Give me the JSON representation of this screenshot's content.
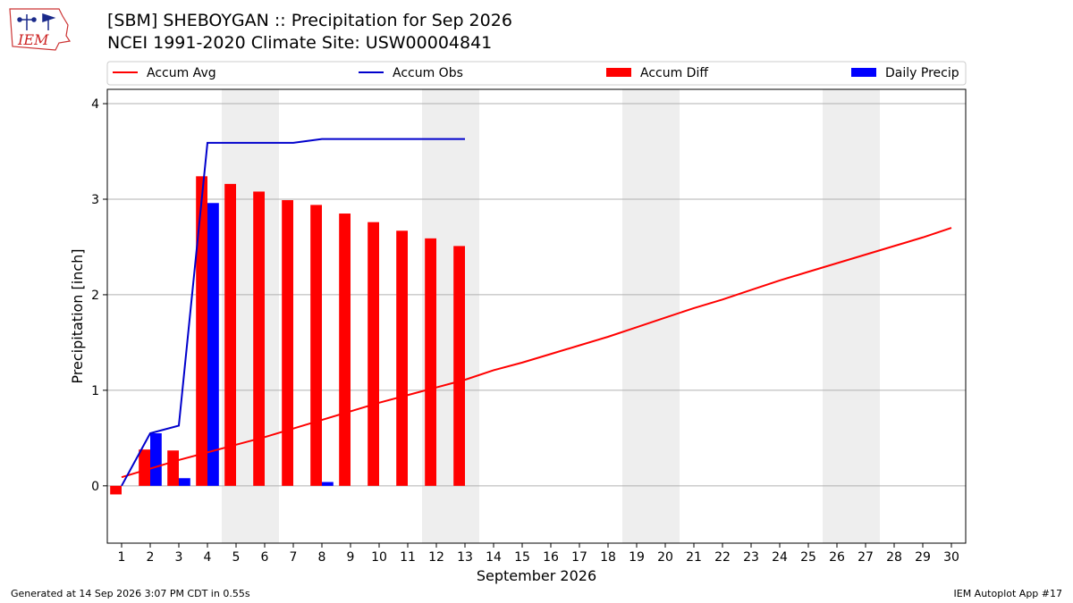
{
  "header": {
    "title_line1": "[SBM] SHEBOYGAN :: Precipitation for Sep 2026",
    "title_line2": "NCEI 1991-2020 Climate Site: USW00004841"
  },
  "logo": {
    "text": "IEM",
    "icon": "iem-iowa-logo"
  },
  "footer": {
    "generated": "Generated at 14 Sep 2026 3:07 PM CDT in 0.55s",
    "app": "IEM Autoplot App #17"
  },
  "colors": {
    "avg": "#ff0000",
    "obs": "#0000cc",
    "diff": "#ff0000",
    "daily": "#0000ff",
    "weekend": "#eeeeee",
    "grid": "#b0b0b0"
  },
  "chart_data": {
    "type": "bar",
    "xlabel": "September 2026",
    "ylabel": "Precipitation [inch]",
    "xlim": [
      0.5,
      30.5
    ],
    "ylim": [
      -0.6,
      4.15
    ],
    "yticks": [
      0,
      1,
      2,
      3,
      4
    ],
    "days": [
      1,
      2,
      3,
      4,
      5,
      6,
      7,
      8,
      9,
      10,
      11,
      12,
      13,
      14,
      15,
      16,
      17,
      18,
      19,
      20,
      21,
      22,
      23,
      24,
      25,
      26,
      27,
      28,
      29,
      30
    ],
    "weekend_days": [
      5,
      6,
      12,
      13,
      19,
      20,
      26,
      27
    ],
    "grid": true,
    "legend_position": "top",
    "series": [
      {
        "name": "Accum Avg",
        "kind": "line",
        "values": [
          0.09,
          0.18,
          0.27,
          0.35,
          0.43,
          0.51,
          0.6,
          0.69,
          0.78,
          0.87,
          0.95,
          1.03,
          1.11,
          1.21,
          1.29,
          1.38,
          1.47,
          1.56,
          1.66,
          1.76,
          1.86,
          1.95,
          2.05,
          2.15,
          2.24,
          2.33,
          2.42,
          2.51,
          2.6,
          2.7
        ]
      },
      {
        "name": "Accum Obs",
        "kind": "line",
        "values": [
          0.0,
          0.55,
          0.63,
          3.59,
          3.59,
          3.59,
          3.59,
          3.63,
          3.63,
          3.63,
          3.63,
          3.63,
          3.63
        ]
      },
      {
        "name": "Accum Diff",
        "kind": "bar",
        "offset": "left",
        "values": [
          -0.09,
          0.38,
          0.37,
          3.24,
          3.16,
          3.08,
          2.99,
          2.94,
          2.85,
          2.76,
          2.67,
          2.59,
          2.51
        ]
      },
      {
        "name": "Daily Precip",
        "kind": "bar",
        "offset": "right",
        "values": [
          0.0,
          0.55,
          0.08,
          2.96,
          0.0,
          0.0,
          0.0,
          0.04,
          0.0,
          0.0,
          0.0,
          0.0,
          0.0
        ]
      }
    ]
  }
}
